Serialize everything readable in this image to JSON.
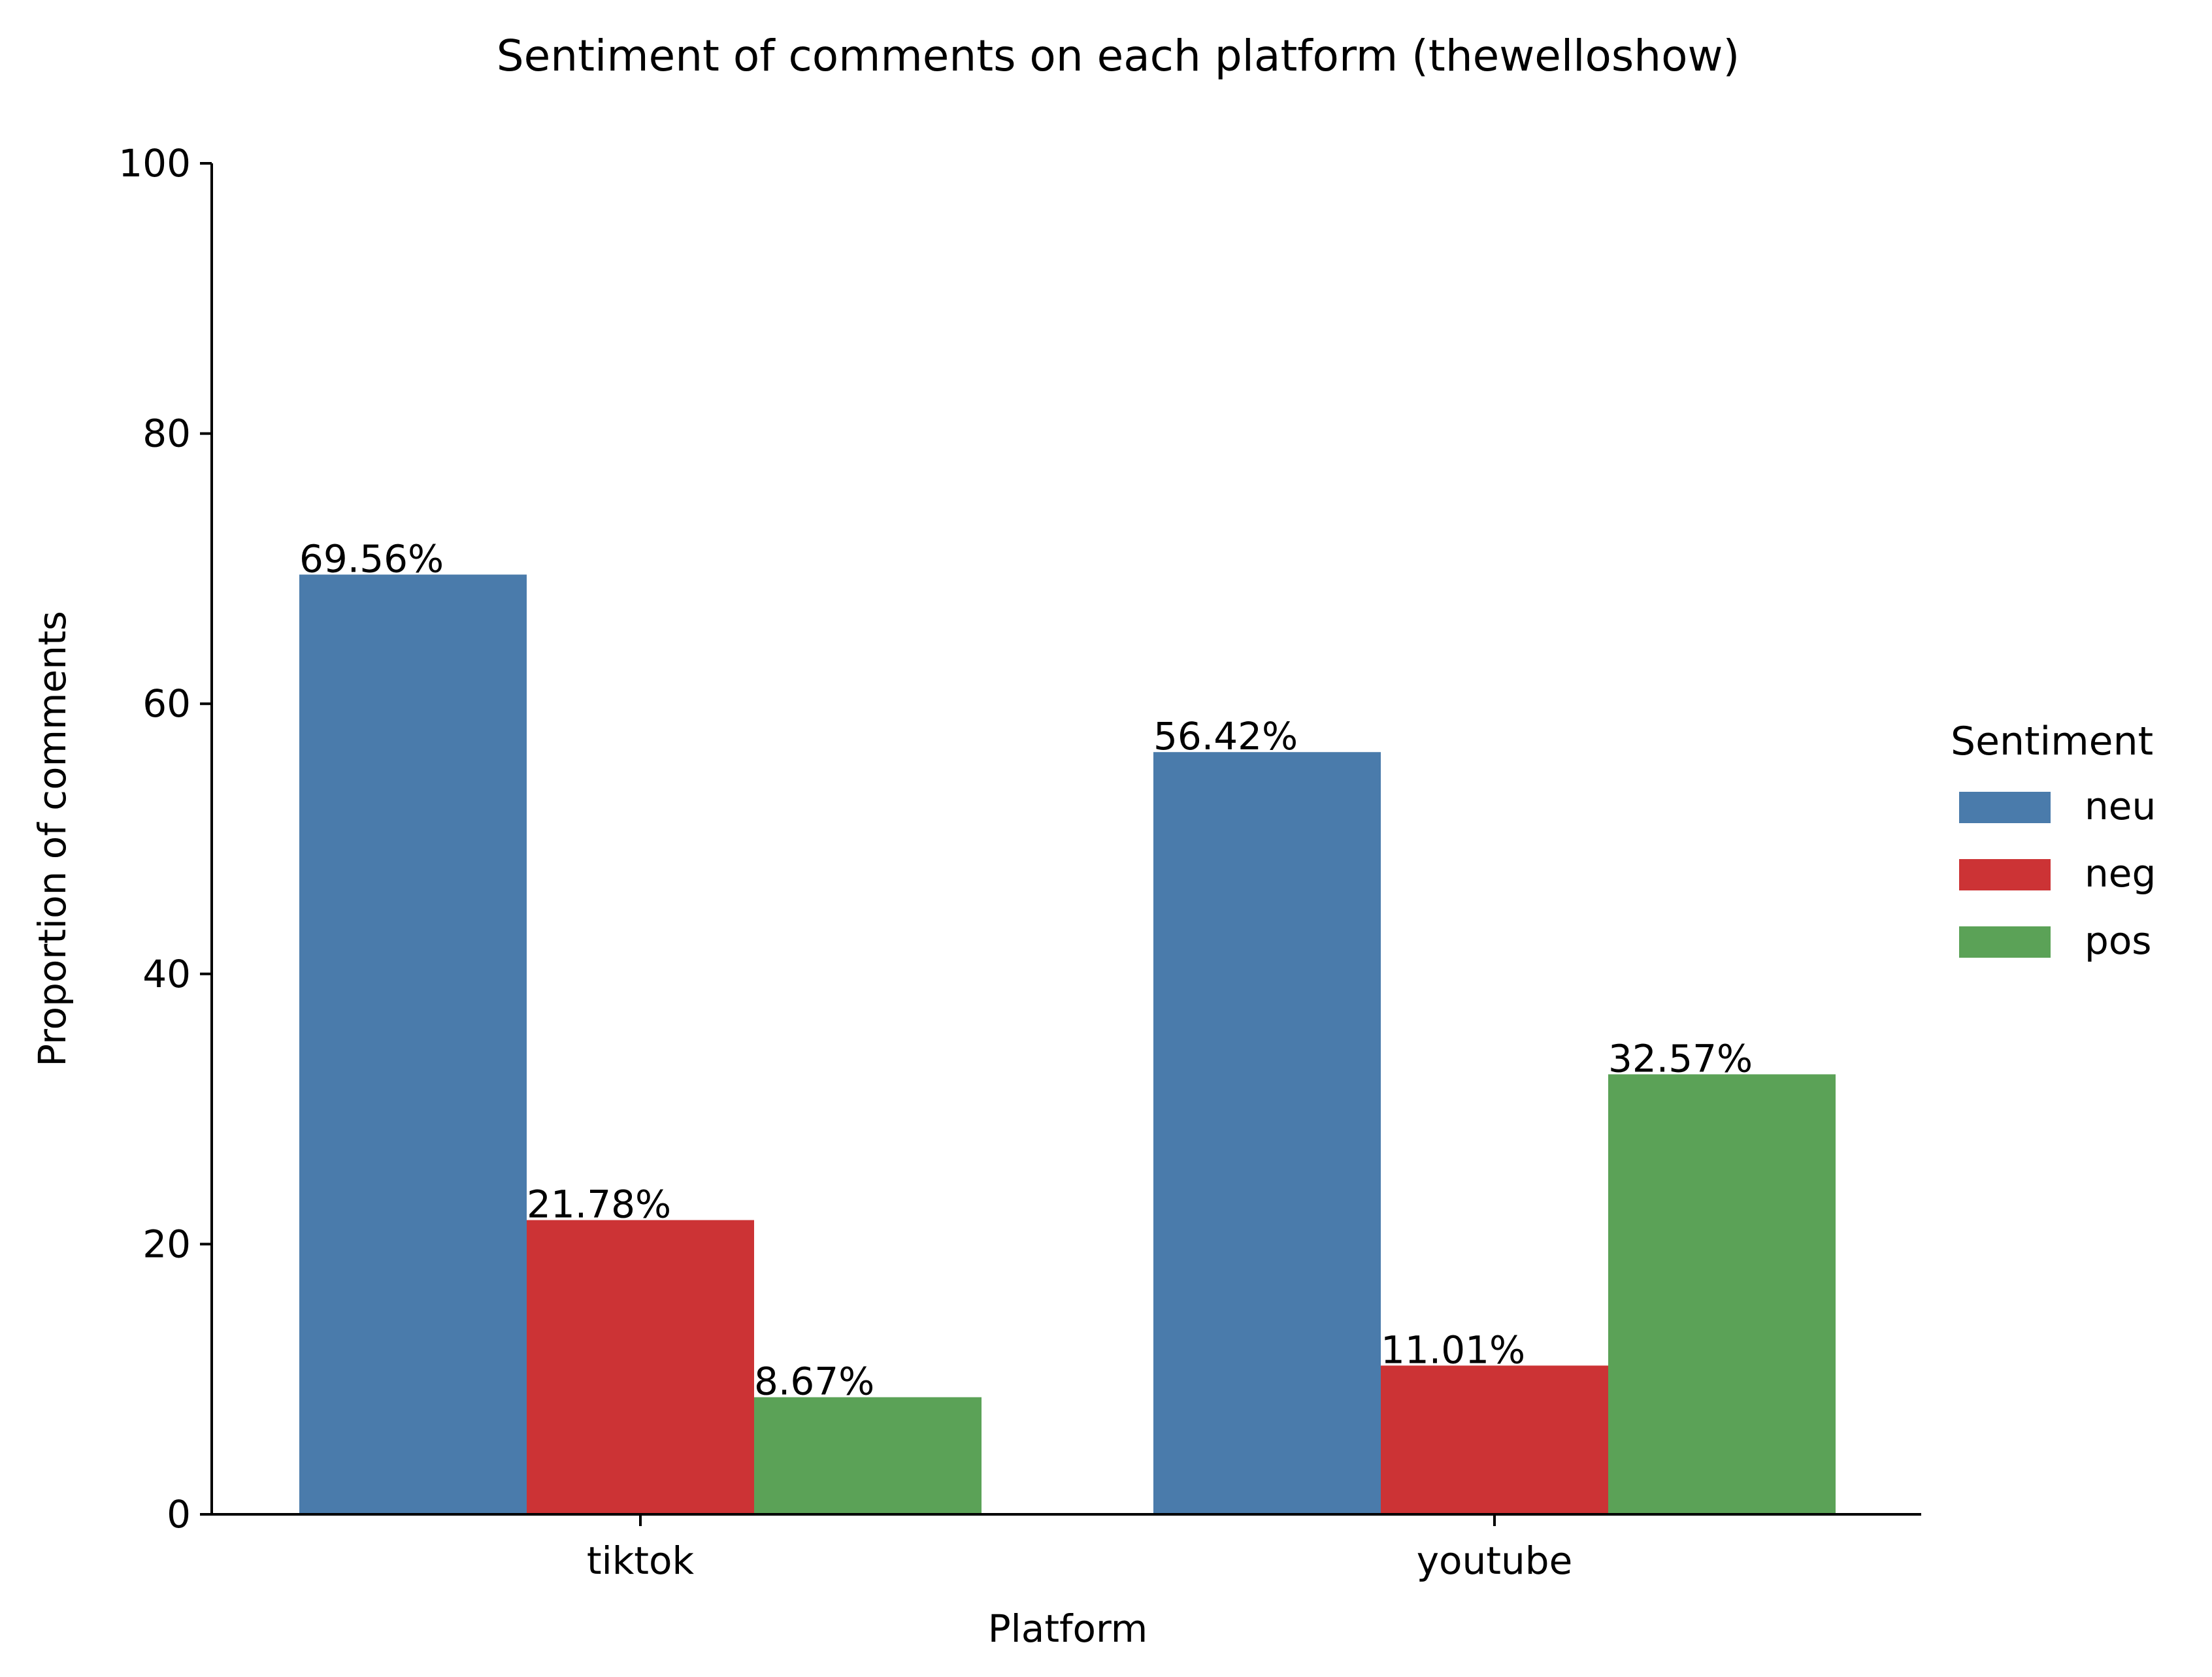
{
  "chart_data": {
    "type": "bar",
    "title": "Sentiment of comments on each platform (thewelloshow)",
    "xlabel": "Platform",
    "ylabel": "Proportion of comments",
    "categories": [
      "tiktok",
      "youtube"
    ],
    "ylim": [
      0,
      100
    ],
    "yticks": [
      0,
      20,
      40,
      60,
      80,
      100
    ],
    "series": [
      {
        "name": "neu",
        "color": "#4a7bab",
        "values": [
          69.56,
          56.42
        ],
        "labels": [
          "69.56%",
          "56.42%"
        ]
      },
      {
        "name": "neg",
        "color": "#cc3335",
        "values": [
          21.78,
          11.01
        ],
        "labels": [
          "21.78%",
          "11.01%"
        ]
      },
      {
        "name": "pos",
        "color": "#5ba257",
        "values": [
          8.67,
          32.57
        ],
        "labels": [
          "8.67%",
          "32.57%"
        ]
      }
    ],
    "legend": {
      "title": "Sentiment",
      "position": "right"
    },
    "grid": false
  }
}
